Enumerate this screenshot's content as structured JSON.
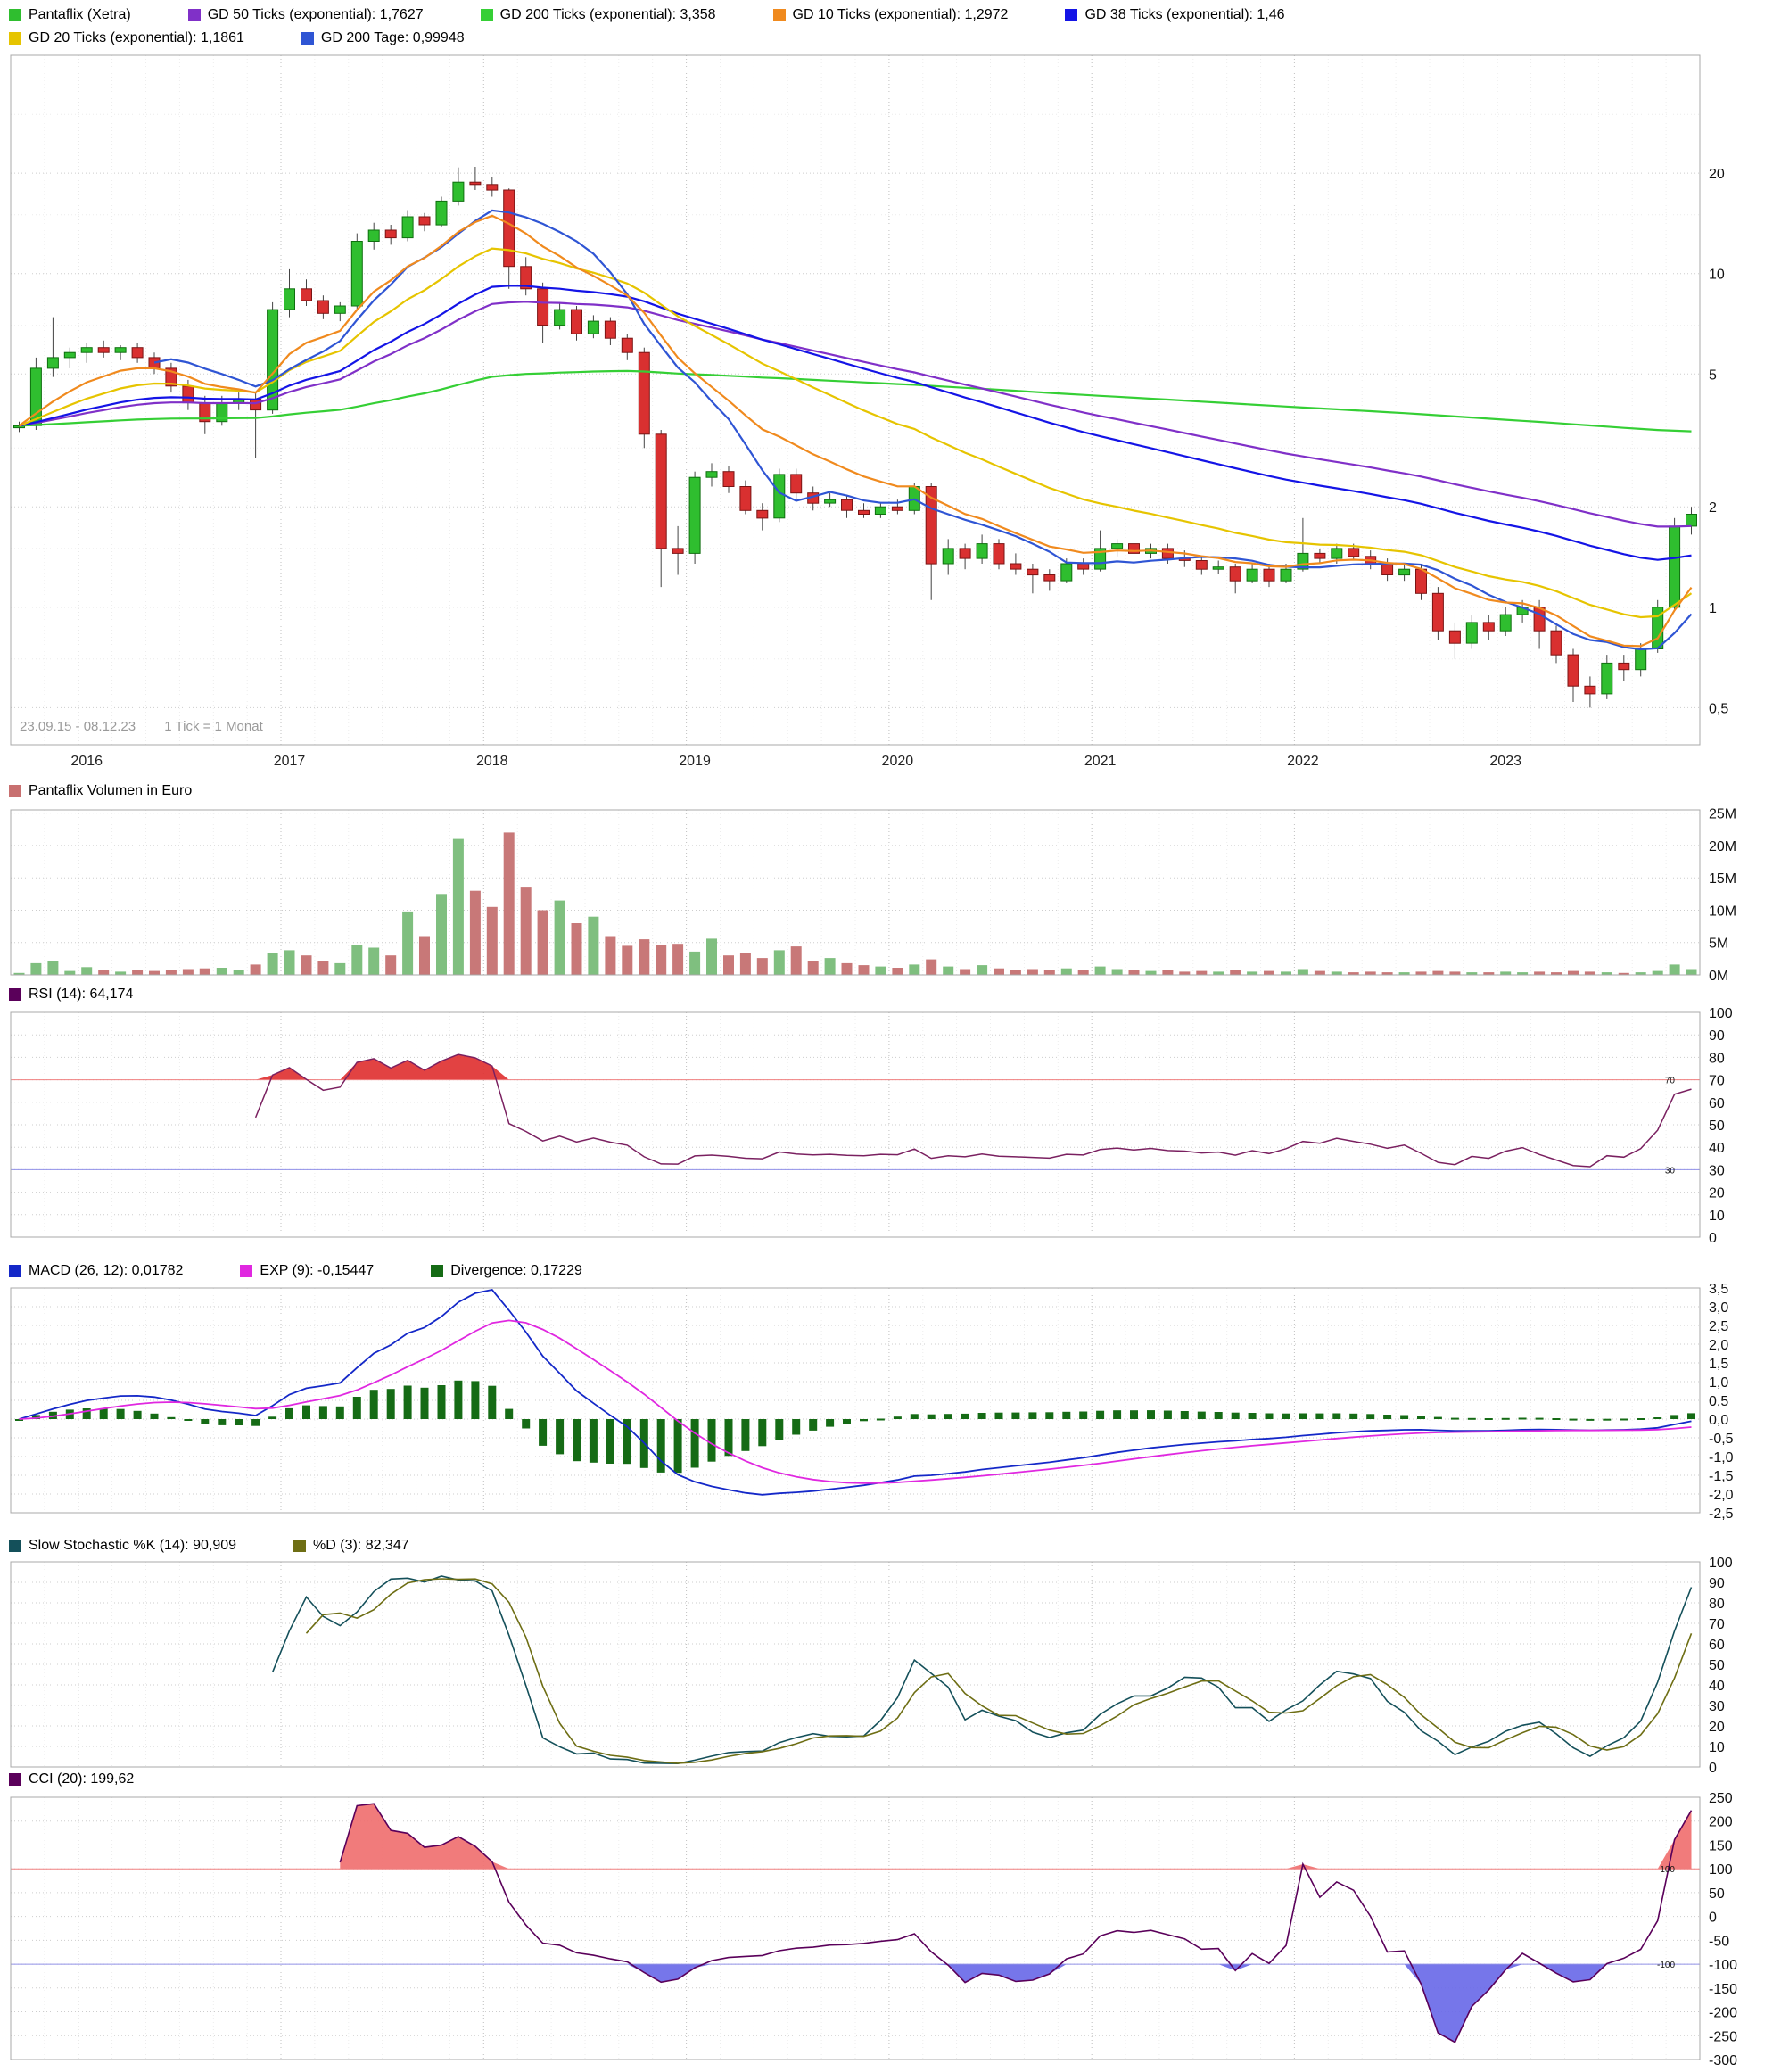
{
  "legend": {
    "row1": [
      {
        "label": "Pantaflix (Xetra)",
        "color": "#2fbe2f"
      },
      {
        "label": "GD 50 Ticks (exponential): 1,7627",
        "color": "#8030c8"
      },
      {
        "label": "GD 200 Ticks (exponential): 3,358",
        "color": "#35cf35"
      },
      {
        "label": "GD 10 Ticks (exponential): 1,2972",
        "color": "#f08a1e"
      },
      {
        "label": "GD 38 Ticks (exponential): 1,46",
        "color": "#1414e6"
      }
    ],
    "row2": [
      {
        "label": "GD 20 Ticks (exponential): 1,1861",
        "color": "#e6c400"
      },
      {
        "label": "GD 200 Tage: 0,99948",
        "color": "#2f55d4"
      }
    ],
    "volume": [
      {
        "label": "Pantaflix Volumen in Euro",
        "color": "#c87070"
      }
    ],
    "rsi": [
      {
        "label": "RSI (14): 64,174",
        "color": "#5a005a"
      }
    ],
    "macd": [
      {
        "label": "MACD (26, 12): 0,01782",
        "color": "#1428c8"
      },
      {
        "label": "EXP (9): -0,15447",
        "color": "#e028e0"
      },
      {
        "label": "Divergence: 0,17229",
        "color": "#156b15"
      }
    ],
    "stochastic": [
      {
        "label": "Slow Stochastic %K (14): 90,909",
        "color": "#14505a"
      },
      {
        "label": "%D (3): 82,347",
        "color": "#6e6e14"
      }
    ],
    "cci": [
      {
        "label": "CCI (20): 199,62",
        "color": "#5a005a"
      }
    ]
  },
  "chart_data": {
    "type": "candlestick-multi-panel",
    "title": "Pantaflix (Xetra)",
    "period_label": "23.09.15 - 08.12.23",
    "tick_label": "1 Tick = 1 Monat",
    "months_start": "2015-09",
    "x_year_ticks": [
      {
        "index": 4,
        "label": "2016"
      },
      {
        "index": 16,
        "label": "2017"
      },
      {
        "index": 28,
        "label": "2018"
      },
      {
        "index": 40,
        "label": "2019"
      },
      {
        "index": 52,
        "label": "2020"
      },
      {
        "index": 64,
        "label": "2021"
      },
      {
        "index": 76,
        "label": "2022"
      },
      {
        "index": 88,
        "label": "2023"
      }
    ],
    "ohlc": {
      "open": [
        3.45,
        3.5,
        5.2,
        5.6,
        5.8,
        6.0,
        5.8,
        6.0,
        5.6,
        5.2,
        4.6,
        4.1,
        3.6,
        4.1,
        4.2,
        3.9,
        7.8,
        9.0,
        8.3,
        7.6,
        8.0,
        12.5,
        13.5,
        12.8,
        14.8,
        14.0,
        16.5,
        18.8,
        18.5,
        17.8,
        10.5,
        9.0,
        7.0,
        7.8,
        6.6,
        7.2,
        6.4,
        5.8,
        3.3,
        1.5,
        1.45,
        2.45,
        2.55,
        2.3,
        1.95,
        1.85,
        2.5,
        2.2,
        2.05,
        2.1,
        1.95,
        1.9,
        2.0,
        1.95,
        2.3,
        1.35,
        1.5,
        1.4,
        1.55,
        1.35,
        1.3,
        1.25,
        1.2,
        1.35,
        1.3,
        1.5,
        1.55,
        1.45,
        1.5,
        1.4,
        1.38,
        1.3,
        1.32,
        1.2,
        1.3,
        1.2,
        1.3,
        1.45,
        1.4,
        1.5,
        1.42,
        1.35,
        1.25,
        1.3,
        1.1,
        0.85,
        0.78,
        0.9,
        0.85,
        0.95,
        1.0,
        0.85,
        0.72,
        0.58,
        0.55,
        0.68,
        0.65,
        0.75,
        1.0,
        1.75
      ],
      "high": [
        3.6,
        5.6,
        7.4,
        6.0,
        6.2,
        6.3,
        6.1,
        6.2,
        5.8,
        5.4,
        4.8,
        4.3,
        4.3,
        4.4,
        4.4,
        8.2,
        10.3,
        9.6,
        8.6,
        8.2,
        13.2,
        14.2,
        14.0,
        15.5,
        15.2,
        17.0,
        20.8,
        20.9,
        19.5,
        18.0,
        11.2,
        9.4,
        8.2,
        8.0,
        7.5,
        7.4,
        6.6,
        6.0,
        3.4,
        1.75,
        2.55,
        2.7,
        2.65,
        2.4,
        2.05,
        2.6,
        2.6,
        2.3,
        2.2,
        2.15,
        2.05,
        2.05,
        2.1,
        2.35,
        2.35,
        1.6,
        1.55,
        1.65,
        1.6,
        1.45,
        1.35,
        1.3,
        1.4,
        1.4,
        1.7,
        1.6,
        1.6,
        1.55,
        1.55,
        1.48,
        1.42,
        1.38,
        1.35,
        1.35,
        1.35,
        1.35,
        1.85,
        1.5,
        1.55,
        1.55,
        1.48,
        1.4,
        1.35,
        1.35,
        1.15,
        0.9,
        0.95,
        0.95,
        1.0,
        1.05,
        1.05,
        0.88,
        0.75,
        0.62,
        0.72,
        0.72,
        0.78,
        1.05,
        1.85,
        2.0
      ],
      "low": [
        3.35,
        3.4,
        4.9,
        5.2,
        5.4,
        5.6,
        5.5,
        5.4,
        5.0,
        4.4,
        3.9,
        3.3,
        3.5,
        3.9,
        2.8,
        3.8,
        7.4,
        8.0,
        7.3,
        7.2,
        7.8,
        11.8,
        12.2,
        12.5,
        13.4,
        13.8,
        16.0,
        17.8,
        17.0,
        9.0,
        8.6,
        6.2,
        6.8,
        6.3,
        6.4,
        6.1,
        5.5,
        3.0,
        1.15,
        1.25,
        1.35,
        2.3,
        2.2,
        1.9,
        1.7,
        1.8,
        2.1,
        1.95,
        2.0,
        1.85,
        1.85,
        1.85,
        1.9,
        1.9,
        1.05,
        1.25,
        1.3,
        1.35,
        1.3,
        1.25,
        1.1,
        1.12,
        1.18,
        1.25,
        1.28,
        1.42,
        1.4,
        1.4,
        1.35,
        1.32,
        1.25,
        1.26,
        1.1,
        1.18,
        1.15,
        1.18,
        1.28,
        1.35,
        1.35,
        1.38,
        1.3,
        1.2,
        1.2,
        1.05,
        0.8,
        0.7,
        0.75,
        0.8,
        0.82,
        0.9,
        0.75,
        0.68,
        0.52,
        0.5,
        0.53,
        0.6,
        0.62,
        0.73,
        0.98,
        1.65
      ],
      "close": [
        3.5,
        5.2,
        5.6,
        5.8,
        6.0,
        5.8,
        6.0,
        5.6,
        5.2,
        4.6,
        4.1,
        3.6,
        4.1,
        4.2,
        3.9,
        7.8,
        9.0,
        8.3,
        7.6,
        8.0,
        12.5,
        13.5,
        12.8,
        14.8,
        14.0,
        16.5,
        18.8,
        18.5,
        17.8,
        10.5,
        9.0,
        7.0,
        7.8,
        6.6,
        7.2,
        6.4,
        5.8,
        3.3,
        1.5,
        1.45,
        2.45,
        2.55,
        2.3,
        1.95,
        1.85,
        2.5,
        2.2,
        2.05,
        2.1,
        1.95,
        1.9,
        2.0,
        1.95,
        2.3,
        1.35,
        1.5,
        1.4,
        1.55,
        1.35,
        1.3,
        1.25,
        1.2,
        1.35,
        1.3,
        1.5,
        1.55,
        1.45,
        1.5,
        1.4,
        1.38,
        1.3,
        1.32,
        1.2,
        1.3,
        1.2,
        1.3,
        1.45,
        1.4,
        1.5,
        1.42,
        1.35,
        1.25,
        1.3,
        1.1,
        0.85,
        0.78,
        0.9,
        0.85,
        0.95,
        1.0,
        0.85,
        0.72,
        0.58,
        0.55,
        0.68,
        0.65,
        0.75,
        1.0,
        1.75,
        1.9
      ]
    },
    "volume_millions": [
      0.3,
      1.8,
      2.2,
      0.6,
      1.2,
      0.8,
      0.5,
      0.7,
      0.6,
      0.8,
      0.9,
      1.0,
      1.1,
      0.7,
      1.6,
      3.4,
      3.8,
      3.0,
      2.2,
      1.8,
      4.6,
      4.2,
      3.0,
      9.8,
      6.0,
      12.5,
      21.0,
      13.0,
      10.5,
      22.0,
      13.5,
      10.0,
      11.5,
      8.0,
      9.0,
      6.0,
      4.5,
      5.5,
      4.6,
      4.8,
      3.6,
      5.6,
      3.0,
      3.4,
      2.6,
      3.8,
      4.4,
      2.2,
      2.6,
      1.8,
      1.5,
      1.3,
      1.1,
      1.6,
      2.4,
      1.3,
      0.9,
      1.5,
      1.0,
      0.8,
      0.9,
      0.7,
      1.0,
      0.7,
      1.3,
      0.9,
      0.7,
      0.6,
      0.7,
      0.5,
      0.6,
      0.5,
      0.7,
      0.5,
      0.6,
      0.5,
      0.9,
      0.6,
      0.5,
      0.4,
      0.5,
      0.4,
      0.4,
      0.5,
      0.6,
      0.5,
      0.4,
      0.4,
      0.5,
      0.4,
      0.5,
      0.4,
      0.6,
      0.5,
      0.4,
      0.3,
      0.4,
      0.6,
      1.6,
      0.9
    ],
    "panels": {
      "price": {
        "scale": "log",
        "yticks": [
          {
            "v": 20,
            "label": "20"
          },
          {
            "v": 10,
            "label": "10"
          },
          {
            "v": 5,
            "label": "5"
          },
          {
            "v": 2,
            "label": "2"
          },
          {
            "v": 1,
            "label": "1"
          },
          {
            "v": 0.5,
            "label": "0,5"
          }
        ],
        "minor_yticks": [
          30,
          15,
          7,
          3,
          1.5,
          0.7
        ],
        "ma_lines": [
          {
            "name": "GD 200 Ticks (exponential)",
            "type": "ema",
            "period": 200,
            "color": "#35cf35"
          },
          {
            "name": "GD 50 Ticks (exponential)",
            "type": "ema",
            "period": 50,
            "color": "#8030c8"
          },
          {
            "name": "GD 38 Ticks (exponential)",
            "type": "ema",
            "period": 38,
            "color": "#1414e6"
          },
          {
            "name": "GD 20 Ticks (exponential)",
            "type": "ema",
            "period": 20,
            "color": "#e6c400"
          },
          {
            "name": "GD 200 Tage",
            "type": "sma",
            "period": 9,
            "color": "#2f55d4"
          },
          {
            "name": "GD 10 Ticks (exponential)",
            "type": "ema",
            "period": 10,
            "color": "#f08a1e"
          }
        ]
      },
      "volume": {
        "yticks": [
          {
            "v": 25,
            "label": "25M"
          },
          {
            "v": 20,
            "label": "20M"
          },
          {
            "v": 15,
            "label": "15M"
          },
          {
            "v": 10,
            "label": "10M"
          },
          {
            "v": 5,
            "label": "5M"
          },
          {
            "v": 0,
            "label": "0M"
          }
        ]
      },
      "rsi": {
        "period": 14,
        "upper": 70,
        "lower": 30,
        "upper_label": "70",
        "lower_label": "30",
        "yticks": [
          {
            "v": 100,
            "label": "100"
          },
          {
            "v": 90,
            "label": "90"
          },
          {
            "v": 80,
            "label": "80"
          },
          {
            "v": 70,
            "label": "70"
          },
          {
            "v": 60,
            "label": "60"
          },
          {
            "v": 50,
            "label": "50"
          },
          {
            "v": 40,
            "label": "40"
          },
          {
            "v": 30,
            "label": "30"
          },
          {
            "v": 20,
            "label": "20"
          },
          {
            "v": 10,
            "label": "10"
          },
          {
            "v": 0,
            "label": "0"
          }
        ]
      },
      "macd": {
        "slow": 26,
        "fast": 12,
        "signal": 9,
        "yticks": [
          {
            "v": 3.5,
            "label": "3,5"
          },
          {
            "v": 3.0,
            "label": "3,0"
          },
          {
            "v": 2.5,
            "label": "2,5"
          },
          {
            "v": 2.0,
            "label": "2,0"
          },
          {
            "v": 1.5,
            "label": "1,5"
          },
          {
            "v": 1.0,
            "label": "1,0"
          },
          {
            "v": 0.5,
            "label": "0,5"
          },
          {
            "v": 0.0,
            "label": "0,0"
          },
          {
            "v": -0.5,
            "label": "-0,5"
          },
          {
            "v": -1.0,
            "label": "-1,0"
          },
          {
            "v": -1.5,
            "label": "-1,5"
          },
          {
            "v": -2.0,
            "label": "-2,0"
          },
          {
            "v": -2.5,
            "label": "-2,5"
          }
        ]
      },
      "stochastic": {
        "k_period": 14,
        "d_period": 3,
        "yticks": [
          {
            "v": 100,
            "label": "100"
          },
          {
            "v": 90,
            "label": "90"
          },
          {
            "v": 80,
            "label": "80"
          },
          {
            "v": 70,
            "label": "70"
          },
          {
            "v": 60,
            "label": "60"
          },
          {
            "v": 50,
            "label": "50"
          },
          {
            "v": 40,
            "label": "40"
          },
          {
            "v": 30,
            "label": "30"
          },
          {
            "v": 20,
            "label": "20"
          },
          {
            "v": 10,
            "label": "10"
          },
          {
            "v": 0,
            "label": "0"
          }
        ]
      },
      "cci": {
        "period": 20,
        "upper": 100,
        "lower": -100,
        "upper_label": "100",
        "lower_label": "-100",
        "yticks": [
          {
            "v": 250,
            "label": "250"
          },
          {
            "v": 200,
            "label": "200"
          },
          {
            "v": 150,
            "label": "150"
          },
          {
            "v": 100,
            "label": "100"
          },
          {
            "v": 50,
            "label": "50"
          },
          {
            "v": 0,
            "label": "0"
          },
          {
            "v": -50,
            "label": "-50"
          },
          {
            "v": -100,
            "label": "-100"
          },
          {
            "v": -150,
            "label": "-150"
          },
          {
            "v": -200,
            "label": "-200"
          },
          {
            "v": -250,
            "label": "-250"
          },
          {
            "v": -300,
            "label": "-300"
          }
        ]
      }
    },
    "colors": {
      "candle_up": "#2fbe2f",
      "candle_up_edge": "#0f6f0f",
      "candle_down": "#d93030",
      "candle_down_edge": "#7a1414",
      "vol_up": "#7fbf7f",
      "vol_down": "#c87878",
      "rsi_line": "#7a2060",
      "rsi_fill": "#e03232",
      "threshold_upper": "#f08080",
      "threshold_lower": "#9090e8",
      "macd_line": "#1428c8",
      "macd_signal": "#e028e0",
      "macd_hist": "#156b15",
      "stoch_k": "#14505a",
      "stoch_d": "#6e6e14",
      "cci_line": "#5a005a",
      "cci_fill_high": "#f07070",
      "cci_fill_low": "#6a6ae8"
    }
  }
}
